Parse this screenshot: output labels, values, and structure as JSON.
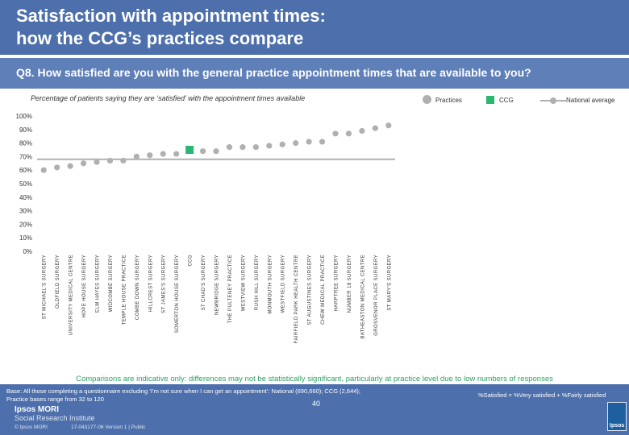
{
  "title": {
    "line1": "Satisfaction with appointment times:",
    "line2": "how the CCG’s practices compare"
  },
  "question": "Q8. How satisfied are you with the general practice appointment times that are available to you?",
  "subtitle": "Percentage of patients saying they are ‘satisfied’ with the appointment times available",
  "legend": {
    "practices": "Practices",
    "ccg": "CCG",
    "national": "National average"
  },
  "colors": {
    "practice": "#b0b0b0",
    "ccg": "#2bb673",
    "national": "#b0b0b0",
    "header": "#4d6fab",
    "note": "#2e9e62"
  },
  "chart_data": {
    "type": "scatter",
    "title": "Percentage of patients saying they are ‘satisfied’ with the appointment times available",
    "xlabel": "",
    "ylabel": "",
    "ylim": [
      0,
      100
    ],
    "yticks": [
      "0%",
      "10%",
      "20%",
      "30%",
      "40%",
      "50%",
      "60%",
      "70%",
      "80%",
      "90%",
      "100%"
    ],
    "national_average": 68,
    "categories": [
      "ST MICHAEL'S SURGERY",
      "OLDFIELD SURGERY",
      "UNIVERSITY MEDICAL CENTRE",
      "HOPE HOUSE SURGERY",
      "ELM HAYES SURGERY",
      "WIDCOMBE SURGERY",
      "TEMPLE HOUSE PRACTICE",
      "COMBE DOWN SURGERY",
      "HILLCREST SURGERY",
      "ST JAMES'S SURGERY",
      "SOMERTON HOUSE SURGERY",
      "CCG",
      "ST CHAD'S SURGERY",
      "NEWBRIDGE SURGERY",
      "THE PULTENEY PRACTICE",
      "WESTVIEW SURGERY",
      "RUSH HILL SURGERY",
      "MONMOUTH SURGERY",
      "WESTFIELD SURGERY",
      "FAIRFIELD PARK HEALTH CENTRE",
      "ST AUGUSTINES SURGERY",
      "CHEW MEDICAL PRACTICE",
      "HARPTREE SURGERY",
      "NUMBER 18 SURGERY",
      "BATHEASTON MEDICAL CENTRE",
      "GROSVENOR PLACE SURGERY",
      "ST MARY'S SURGERY"
    ],
    "values": [
      60,
      62,
      63,
      65,
      66,
      67,
      67,
      70,
      71,
      72,
      72,
      75,
      74,
      74,
      77,
      77,
      77,
      78,
      79,
      80,
      81,
      81,
      87,
      87,
      89,
      91,
      93
    ],
    "ccg_index": 11
  },
  "note": "Comparisons are indicative only: differences may not be statistically significant, particularly at practice level due to low numbers of responses",
  "footer": {
    "base_line1": "Base: All those completing a questionnaire excluding ‘I’m not sure when I can get an appointment’: National (690,660); CCG (2,644);",
    "base_line2": "Practice bases range from 32 to 120",
    "satisfied_def": "%Satisfied = %Very satisfied + %Fairly satisfied",
    "page": "40",
    "logo_main": "Ipsos MORI",
    "logo_sub": "Social Research Institute",
    "copyright": "© Ipsos MORI",
    "job_code": "17-043177-06 Version 1 | Public",
    "logo_box": "Ipsos"
  }
}
